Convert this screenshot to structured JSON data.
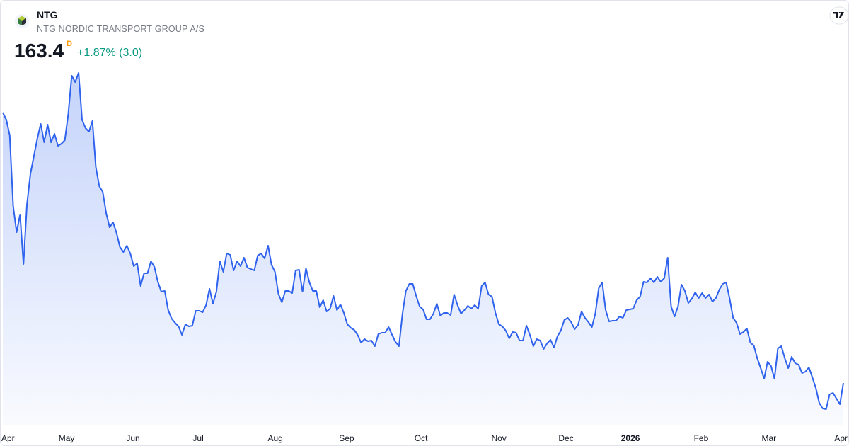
{
  "header": {
    "symbol": "NTG",
    "name": "NTG NORDIC TRANSPORT GROUP A/S",
    "price": "163.4",
    "interval": "D",
    "change": "+1.87% (3.0)"
  },
  "chart_data": {
    "type": "area",
    "color": "#2f63ee",
    "values": [
      201.6,
      200.6,
      198.4,
      188.4,
      184.7,
      187.2,
      180.2,
      188.6,
      192.9,
      195.4,
      197.9,
      200.0,
      197.4,
      199.9,
      197.4,
      198.6,
      196.9,
      197.2,
      197.7,
      201.4,
      206.8,
      205.9,
      207.2,
      200.6,
      199.4,
      198.9,
      200.4,
      193.9,
      191.2,
      190.4,
      187.4,
      185.4,
      186.1,
      184.6,
      182.6,
      181.9,
      182.8,
      181.7,
      179.9,
      180.3,
      177.1,
      178.9,
      178.9,
      180.6,
      179.8,
      177.7,
      176.3,
      176.4,
      173.7,
      172.5,
      171.9,
      171.4,
      170.2,
      171.7,
      171.4,
      171.5,
      173.6,
      173.6,
      173.4,
      174.4,
      176.7,
      174.6,
      176.3,
      180.6,
      179.1,
      181.7,
      181.5,
      179.3,
      180.6,
      179.9,
      181.1,
      179.7,
      179.5,
      179.3,
      181.4,
      181.7,
      181.0,
      182.8,
      180.1,
      179.1,
      176.0,
      174.8,
      176.4,
      176.4,
      176.1,
      179.3,
      179.4,
      176.3,
      179.6,
      177.6,
      176.4,
      176.4,
      174.1,
      175.1,
      173.5,
      173.9,
      175.7,
      173.7,
      174.5,
      173.3,
      171.7,
      171.2,
      170.9,
      170.2,
      169.1,
      169.6,
      169.3,
      169.4,
      168.6,
      170.3,
      170.5,
      170.5,
      171.3,
      170.2,
      169.2,
      168.6,
      173.1,
      176.4,
      177.4,
      177.4,
      175.7,
      174.2,
      173.8,
      172.4,
      172.4,
      173.2,
      174.6,
      172.9,
      173.3,
      173.3,
      173.0,
      175.9,
      174.4,
      173.2,
      173.7,
      174.3,
      173.9,
      174.4,
      173.9,
      177.1,
      177.6,
      175.9,
      175.6,
      173.3,
      171.7,
      171.4,
      170.8,
      169.7,
      170.6,
      170.5,
      169.4,
      169.4,
      171.5,
      170.2,
      168.6,
      169.6,
      169.4,
      168.2,
      169.0,
      169.5,
      168.4,
      170.0,
      170.8,
      172.3,
      172.6,
      172.0,
      171.0,
      171.6,
      173.5,
      172.6,
      172.0,
      171.3,
      173.2,
      176.8,
      177.6,
      173.7,
      172.1,
      172.2,
      172.2,
      172.8,
      172.6,
      173.7,
      173.8,
      173.9,
      175.1,
      175.6,
      177.7,
      177.6,
      178.2,
      177.6,
      178.4,
      177.7,
      178.2,
      181.1,
      174.2,
      172.8,
      174.2,
      177.3,
      176.4,
      174.7,
      175.3,
      176.2,
      175.4,
      176.1,
      175.4,
      175.9,
      174.9,
      175.4,
      176.6,
      177.4,
      177.6,
      175.3,
      172.6,
      171.9,
      170.3,
      170.6,
      171.1,
      169.1,
      168.7,
      166.9,
      165.5,
      164.0,
      166.4,
      165.8,
      164.0,
      168.3,
      168.6,
      166.9,
      165.5,
      167.1,
      166.2,
      166.0,
      164.8,
      165.0,
      165.6,
      164.2,
      162.7,
      160.6,
      159.8,
      159.7,
      161.8,
      162.0,
      161.2,
      160.4,
      163.4
    ],
    "xlim": [
      0,
      244
    ],
    "ylim": [
      157,
      208
    ],
    "xticks": [
      {
        "value": 0,
        "label": "Apr"
      },
      {
        "value": 18.5,
        "label": "May"
      },
      {
        "value": 37.8,
        "label": "Jun"
      },
      {
        "value": 56.7,
        "label": "Jul"
      },
      {
        "value": 79.1,
        "label": "Aug"
      },
      {
        "value": 99.8,
        "label": "Sep"
      },
      {
        "value": 121.4,
        "label": "Oct"
      },
      {
        "value": 144,
        "label": "Nov"
      },
      {
        "value": 163.5,
        "label": "Dec"
      },
      {
        "value": 182.2,
        "label": "2026"
      },
      {
        "value": 202.7,
        "label": "Feb"
      },
      {
        "value": 222.4,
        "label": "Mar"
      },
      {
        "value": 244,
        "label": "Apr"
      }
    ]
  }
}
